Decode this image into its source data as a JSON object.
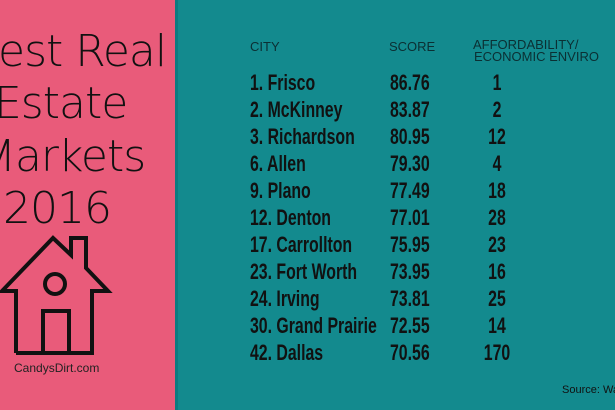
{
  "title_lines": [
    "est Real",
    "Estate",
    "Markets",
    "2016"
  ],
  "site": "CandysDirt.com",
  "icons": {
    "house": "house-icon"
  },
  "colors": {
    "left_panel": "#e95b7a",
    "right_panel": "#138a8e"
  },
  "table": {
    "headers": {
      "city": "CITY",
      "score": "SCORE",
      "afford_line1": "AFFORDABILITY/",
      "afford_line2": "ECONOMIC ENVIRO"
    },
    "rows": [
      {
        "city": "1. Frisco",
        "score": "86.76",
        "afford": "1"
      },
      {
        "city": "2. McKinney",
        "score": "83.87",
        "afford": "2"
      },
      {
        "city": "3. Richardson",
        "score": "80.95",
        "afford": "12"
      },
      {
        "city": "6. Allen",
        "score": "79.30",
        "afford": "4"
      },
      {
        "city": "9. Plano",
        "score": "77.49",
        "afford": "18"
      },
      {
        "city": "12. Denton",
        "score": "77.01",
        "afford": "28"
      },
      {
        "city": "17. Carrollton",
        "score": "75.95",
        "afford": "23"
      },
      {
        "city": "23. Fort Worth",
        "score": "73.95",
        "afford": "16"
      },
      {
        "city": "24. Irving",
        "score": "73.81",
        "afford": "25"
      },
      {
        "city": "30. Grand Prairie",
        "score": "72.55",
        "afford": "14"
      },
      {
        "city": "42. Dallas",
        "score": "70.56",
        "afford": "170"
      }
    ]
  },
  "source": "Source: Wa"
}
